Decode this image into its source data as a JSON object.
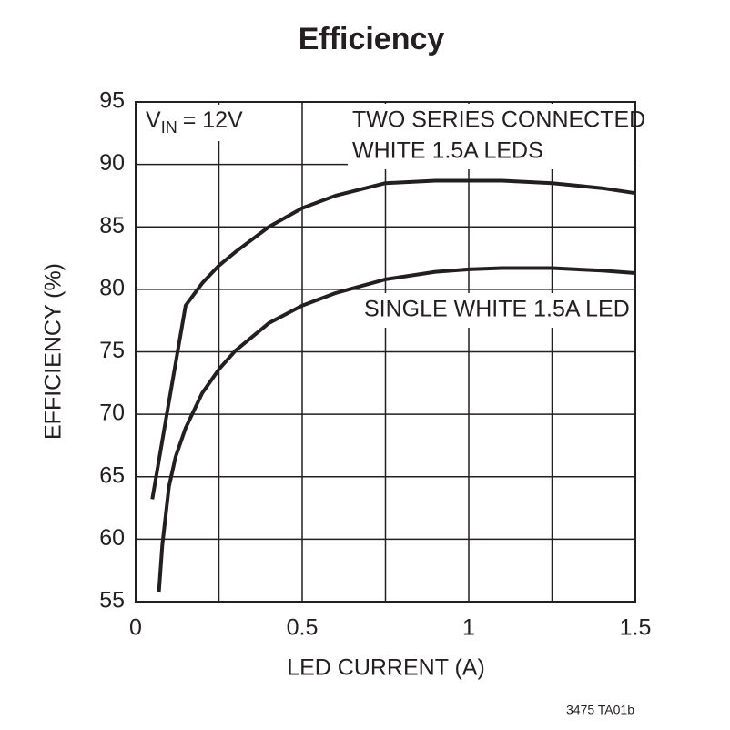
{
  "chart_data": {
    "type": "line",
    "title": "Efficiency",
    "x_label": "LED CURRENT (A)",
    "y_label": "EFFICIENCY (%)",
    "condition": {
      "symbol": "V",
      "subscript": "IN",
      "value": "= 12V"
    },
    "footnote": "3475 TA01b",
    "xlim": [
      0,
      1.5
    ],
    "ylim": [
      55,
      95
    ],
    "xticks": [
      0,
      0.5,
      1,
      1.5
    ],
    "yticks": [
      55,
      60,
      65,
      70,
      75,
      80,
      85,
      90,
      95
    ],
    "xgrid": [
      0,
      0.25,
      0.5,
      0.75,
      1,
      1.25,
      1.5
    ],
    "grid": true,
    "series": [
      {
        "label": [
          "TWO SERIES CONNECTED",
          "WHITE 1.5A LEDS"
        ],
        "color": "#231f20",
        "x": [
          0.05,
          0.1,
          0.15,
          0.2,
          0.25,
          0.3,
          0.4,
          0.5,
          0.6,
          0.75,
          0.9,
          1.0,
          1.1,
          1.25,
          1.4,
          1.5
        ],
        "values": [
          63.2,
          71,
          78.7,
          80.5,
          81.9,
          83,
          85,
          86.5,
          87.5,
          88.5,
          88.7,
          88.7,
          88.7,
          88.5,
          88.1,
          87.7
        ]
      },
      {
        "label": [
          "SINGLE WHITE 1.5A LED"
        ],
        "color": "#231f20",
        "x": [
          0.07,
          0.08,
          0.1,
          0.12,
          0.15,
          0.2,
          0.25,
          0.3,
          0.4,
          0.5,
          0.6,
          0.75,
          0.9,
          1.0,
          1.1,
          1.25,
          1.4,
          1.5
        ],
        "values": [
          55.8,
          59.5,
          64.2,
          66.6,
          68.9,
          71.7,
          73.6,
          75.1,
          77.3,
          78.7,
          79.7,
          80.8,
          81.4,
          81.6,
          81.7,
          81.7,
          81.5,
          81.3
        ]
      }
    ]
  }
}
